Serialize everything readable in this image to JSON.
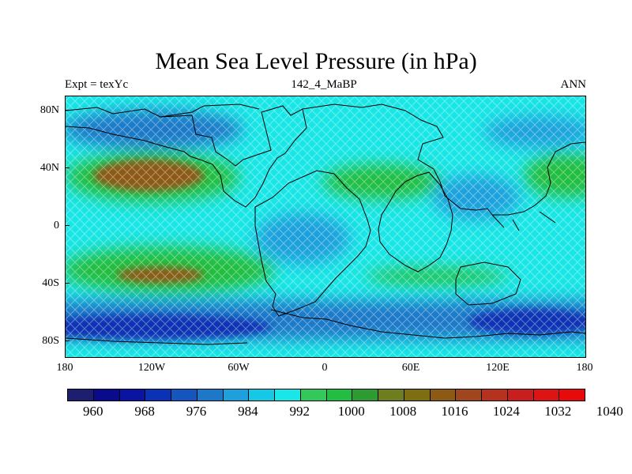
{
  "title": "Mean Sea Level Pressure (in hPa)",
  "subtitles": {
    "left": "Expt = texYc",
    "center": "142_4_MaBP",
    "right": "ANN"
  },
  "lat_labels": [
    "80N",
    "40N",
    "0",
    "40S",
    "80S"
  ],
  "lon_labels": [
    "180",
    "120W",
    "60W",
    "0",
    "60E",
    "120E",
    "180"
  ],
  "colorbar": {
    "colors": [
      "#1e1e70",
      "#0a0a8c",
      "#0a14a0",
      "#0a32b4",
      "#1455be",
      "#1e78c8",
      "#1ea0dc",
      "#14c8e6",
      "#19e6e6",
      "#32c85a",
      "#23be41",
      "#2d9b32",
      "#6e7d1e",
      "#7d6e14",
      "#8c5a14",
      "#a0461e",
      "#b4321e",
      "#c81e1e",
      "#dc1414",
      "#e60a0a"
    ],
    "labels": [
      "960",
      "968",
      "976",
      "984",
      "992",
      "1000",
      "1008",
      "1016",
      "1024",
      "1032",
      "1040"
    ]
  },
  "field_colors": {
    "base": "#19e6e6",
    "low_light": "#1ea0dc",
    "low_mid": "#1e78c8",
    "low_deep": "#0a32b4",
    "high": "#23be41",
    "high_core": "#8c5a14",
    "coast": "#000000"
  }
}
